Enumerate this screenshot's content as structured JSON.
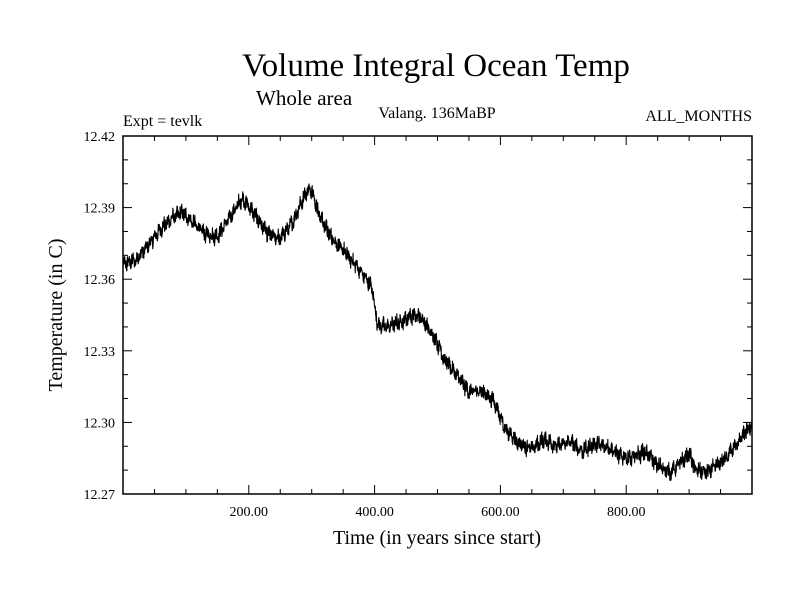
{
  "chart_data": {
    "type": "line",
    "title": "Volume Integral Ocean Temp",
    "subtitle": "Whole area",
    "experiment_label": "Expt = tevlk",
    "period_label": "Valang. 136MaBP",
    "months_label": "ALL_MONTHS",
    "xlabel": "Time (in years since start)",
    "ylabel": "Temperature (in C)",
    "xlim": [
      0,
      1000
    ],
    "ylim": [
      12.27,
      12.42
    ],
    "x_tick_values": [
      200,
      400,
      600,
      800
    ],
    "x_tick_labels": [
      "200.00",
      "400.00",
      "600.00",
      "800.00"
    ],
    "y_tick_values": [
      12.27,
      12.3,
      12.33,
      12.36,
      12.39,
      12.42
    ],
    "y_tick_labels": [
      "12.27",
      "12.30",
      "12.33",
      "12.36",
      "12.39",
      "12.42"
    ],
    "grid": false,
    "legend": "none",
    "line_color": "#000000",
    "noise_band": 0.0025,
    "series": [
      {
        "name": "Temperature",
        "x": [
          0,
          20,
          40,
          60,
          80,
          95,
          110,
          130,
          150,
          170,
          190,
          210,
          230,
          250,
          270,
          290,
          300,
          310,
          330,
          350,
          370,
          395,
          405,
          420,
          440,
          460,
          475,
          490,
          510,
          530,
          550,
          570,
          590,
          610,
          630,
          650,
          670,
          690,
          710,
          730,
          750,
          770,
          790,
          810,
          830,
          850,
          870,
          890,
          900,
          910,
          930,
          950,
          970,
          990,
          1000
        ],
        "values": [
          12.366,
          12.368,
          12.374,
          12.381,
          12.386,
          12.388,
          12.384,
          12.379,
          12.378,
          12.386,
          12.394,
          12.387,
          12.379,
          12.377,
          12.384,
          12.396,
          12.398,
          12.388,
          12.378,
          12.372,
          12.366,
          12.357,
          12.341,
          12.34,
          12.342,
          12.345,
          12.344,
          12.338,
          12.327,
          12.32,
          12.313,
          12.313,
          12.309,
          12.296,
          12.291,
          12.289,
          12.293,
          12.29,
          12.292,
          12.288,
          12.291,
          12.29,
          12.286,
          12.285,
          12.288,
          12.282,
          12.279,
          12.284,
          12.287,
          12.28,
          12.279,
          12.283,
          12.289,
          12.296,
          12.299
        ]
      }
    ]
  }
}
